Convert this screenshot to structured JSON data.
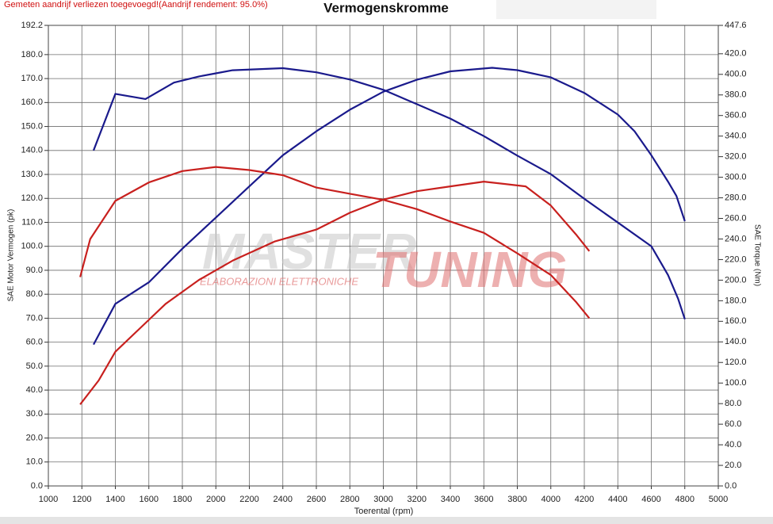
{
  "chart_data": {
    "type": "line",
    "note": "Gemeten aandrijf verliezen toegevoegd!(Aandrijf rendement: 95.0%)",
    "title": "Vermogenskromme",
    "x_label": "Toerental (rpm)",
    "y_label": "SAE Motor Vermogen (pk)",
    "y2_label": "SAE Torque (Nm)",
    "watermark": [
      "MASTER",
      "TUNING",
      "ELABORAZIONI ELETTRONICHE"
    ],
    "grid": true,
    "xlim": [
      1000,
      5000
    ],
    "xticks": [
      1000,
      1200,
      1400,
      1600,
      1800,
      2000,
      2200,
      2400,
      2600,
      2800,
      3000,
      3200,
      3400,
      3600,
      3800,
      4000,
      4200,
      4400,
      4600,
      4800,
      5000
    ],
    "ylim": [
      0,
      192.2
    ],
    "yticks": [
      {
        "value": 0,
        "label": "0.0"
      },
      {
        "value": 10,
        "label": "10.0"
      },
      {
        "value": 20,
        "label": "20.0"
      },
      {
        "value": 30,
        "label": "30.0"
      },
      {
        "value": 40,
        "label": "40.0"
      },
      {
        "value": 50,
        "label": "50.0"
      },
      {
        "value": 60,
        "label": "60.0"
      },
      {
        "value": 70,
        "label": "70.0"
      },
      {
        "value": 80,
        "label": "80.0"
      },
      {
        "value": 90,
        "label": "90.0"
      },
      {
        "value": 100,
        "label": "100.0"
      },
      {
        "value": 110,
        "label": "110.0"
      },
      {
        "value": 120,
        "label": "120.0"
      },
      {
        "value": 130,
        "label": "130.0"
      },
      {
        "value": 140,
        "label": "140.0"
      },
      {
        "value": 150,
        "label": "150.0"
      },
      {
        "value": 160,
        "label": "160.0"
      },
      {
        "value": 170,
        "label": "170.0"
      },
      {
        "value": 180,
        "label": "180.0"
      },
      {
        "value": 192.2,
        "label": "192.2"
      }
    ],
    "y2lim": [
      0,
      447.6
    ],
    "y2ticks": [
      {
        "value": 0,
        "label": "0.0"
      },
      {
        "value": 20,
        "label": "20.0"
      },
      {
        "value": 40,
        "label": "40.0"
      },
      {
        "value": 60,
        "label": "60.0"
      },
      {
        "value": 80,
        "label": "80.0"
      },
      {
        "value": 100,
        "label": "100.0"
      },
      {
        "value": 120,
        "label": "120.0"
      },
      {
        "value": 140,
        "label": "140.0"
      },
      {
        "value": 160,
        "label": "160.0"
      },
      {
        "value": 180,
        "label": "180.0"
      },
      {
        "value": 200,
        "label": "200.0"
      },
      {
        "value": 220,
        "label": "220.0"
      },
      {
        "value": 240,
        "label": "240.0"
      },
      {
        "value": 260,
        "label": "260.0"
      },
      {
        "value": 280,
        "label": "280.0"
      },
      {
        "value": 300,
        "label": "300.0"
      },
      {
        "value": 320,
        "label": "320.0"
      },
      {
        "value": 340,
        "label": "340.0"
      },
      {
        "value": 360,
        "label": "360.0"
      },
      {
        "value": 380,
        "label": "380.0"
      },
      {
        "value": 400,
        "label": "400.0"
      },
      {
        "value": 420,
        "label": "420.0"
      },
      {
        "value": 447.6,
        "label": "447.6"
      }
    ],
    "series": [
      {
        "color": "#1a1a8c",
        "axis": "y",
        "x": [
          1270,
          1400,
          1600,
          1800,
          2000,
          2200,
          2400,
          2600,
          2800,
          3000,
          3200,
          3400,
          3650,
          3800,
          4000,
          4200,
          4400,
          4500,
          4600,
          4700,
          4750,
          4800
        ],
        "values": [
          59,
          76,
          85,
          99,
          112,
          125,
          138,
          148,
          157,
          164.5,
          169.5,
          173,
          174.5,
          173.5,
          170.5,
          164,
          155,
          148,
          138,
          127,
          121,
          110.5
        ]
      },
      {
        "color": "#1a1a8c",
        "axis": "y2",
        "x": [
          1270,
          1400,
          1580,
          1750,
          1900,
          2000,
          2100,
          2400,
          2600,
          2800,
          3000,
          3200,
          3400,
          3600,
          3800,
          4000,
          4200,
          4400,
          4600,
          4700,
          4760,
          4800
        ],
        "values": [
          326,
          381,
          376,
          392,
          398,
          401,
          404,
          406,
          402,
          395,
          385,
          371,
          357,
          340,
          321,
          303,
          279,
          256,
          233,
          205,
          182,
          162
        ]
      },
      {
        "color": "#c8201e",
        "axis": "y",
        "x": [
          1190,
          1300,
          1400,
          1550,
          1700,
          1900,
          2100,
          2350,
          2600,
          2800,
          3000,
          3200,
          3400,
          3600,
          3850,
          4000,
          4150,
          4230
        ],
        "values": [
          34,
          44,
          56,
          66,
          76,
          86,
          94,
          102,
          107,
          114,
          119.5,
          123,
          125,
          127,
          125,
          117,
          105,
          98
        ]
      },
      {
        "color": "#c8201e",
        "axis": "y2",
        "x": [
          1190,
          1250,
          1400,
          1600,
          1800,
          2000,
          2200,
          2400,
          2600,
          2800,
          3000,
          3200,
          3400,
          3600,
          3800,
          4000,
          4150,
          4230
        ],
        "values": [
          203,
          240,
          277,
          295,
          306,
          310,
          307,
          302,
          290,
          284,
          278,
          269,
          257,
          246,
          226,
          205,
          179,
          163
        ]
      }
    ]
  }
}
